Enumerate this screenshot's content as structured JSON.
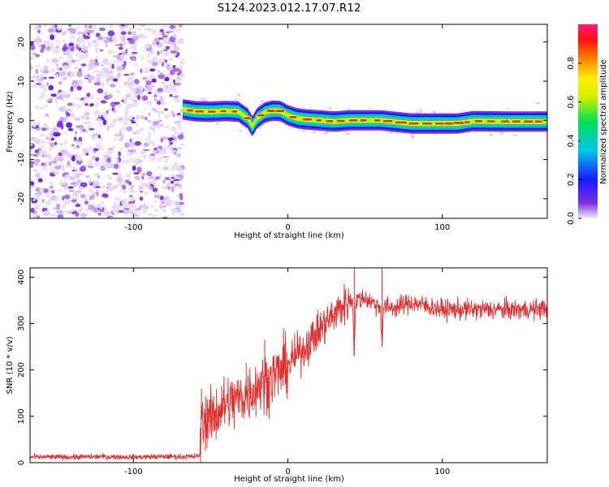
{
  "title": "S124.2023.012.17.07.R12",
  "colors": {
    "snr_line": "#e03030",
    "axis": "#000000",
    "noise": "#8a2be2",
    "ridge_core": "#e8283c"
  },
  "chart_data": [
    {
      "type": "heatmap",
      "xlabel": "Height of straight line (km)",
      "ylabel": "Frequency (Hz)",
      "xlim": [
        -167,
        168
      ],
      "ylim": [
        -25,
        24.5
      ],
      "xticks": [
        -100,
        0,
        100
      ],
      "yticks": [
        -20,
        -10,
        0,
        10,
        20
      ],
      "noise_region_x": [
        -167,
        -68
      ],
      "colorbar": {
        "label": "Normalized spectral amplitude",
        "range": [
          0.0,
          1.0
        ],
        "ticks": [
          0.0,
          0.2,
          0.4,
          0.6,
          0.8
        ],
        "tick_labels": [
          "0.0",
          "0.2",
          "0.4",
          "0.6",
          "0.8"
        ],
        "colormap": "rainbow"
      },
      "ridge": {
        "x": [
          -68,
          -60,
          -50,
          -40,
          -32,
          -26,
          -23,
          -20,
          -15,
          -10,
          -5,
          0,
          5,
          10,
          20,
          30,
          40,
          60,
          80,
          90,
          110,
          120,
          140,
          168
        ],
        "frequency": [
          2.8,
          2.3,
          2.2,
          2.4,
          2.2,
          0.5,
          -1.5,
          0.5,
          2.0,
          2.5,
          2.4,
          1.3,
          0.6,
          0.3,
          0.0,
          -0.3,
          0.0,
          0.0,
          -0.8,
          -0.8,
          -0.8,
          -0.2,
          -0.3,
          -0.3
        ]
      }
    },
    {
      "type": "line",
      "xlabel": "Height of straight line (km)",
      "ylabel": "SNR (10 * v/v)",
      "xlim": [
        -167,
        168
      ],
      "ylim": [
        0,
        420
      ],
      "xticks": [
        -100,
        0,
        100
      ],
      "yticks": [
        0,
        100,
        200,
        300,
        400
      ],
      "series": [
        {
          "x": [
            -167,
            -140,
            -120,
            -100,
            -80,
            -62,
            -57,
            -56,
            -50,
            -40,
            -30,
            -20,
            -10,
            0,
            10,
            20,
            30,
            38,
            42,
            43,
            44,
            50,
            55,
            60,
            61,
            62,
            70,
            80,
            100,
            120,
            140,
            160,
            168
          ],
          "values": [
            12,
            12,
            13,
            12,
            13,
            13,
            15,
            95,
            95,
            125,
            140,
            165,
            185,
            210,
            245,
            285,
            320,
            345,
            350,
            232,
            350,
            355,
            345,
            335,
            250,
            335,
            335,
            345,
            330,
            330,
            330,
            330,
            335
          ],
          "spikes": [
            {
              "x": -56,
              "value": 160
            },
            {
              "x": -43,
              "value": 165
            },
            {
              "x": -27,
              "value": 215
            },
            {
              "x": -15,
              "value": 265
            },
            {
              "x": 43,
              "value": 420
            },
            {
              "x": 61,
              "value": 420
            }
          ]
        }
      ]
    }
  ]
}
